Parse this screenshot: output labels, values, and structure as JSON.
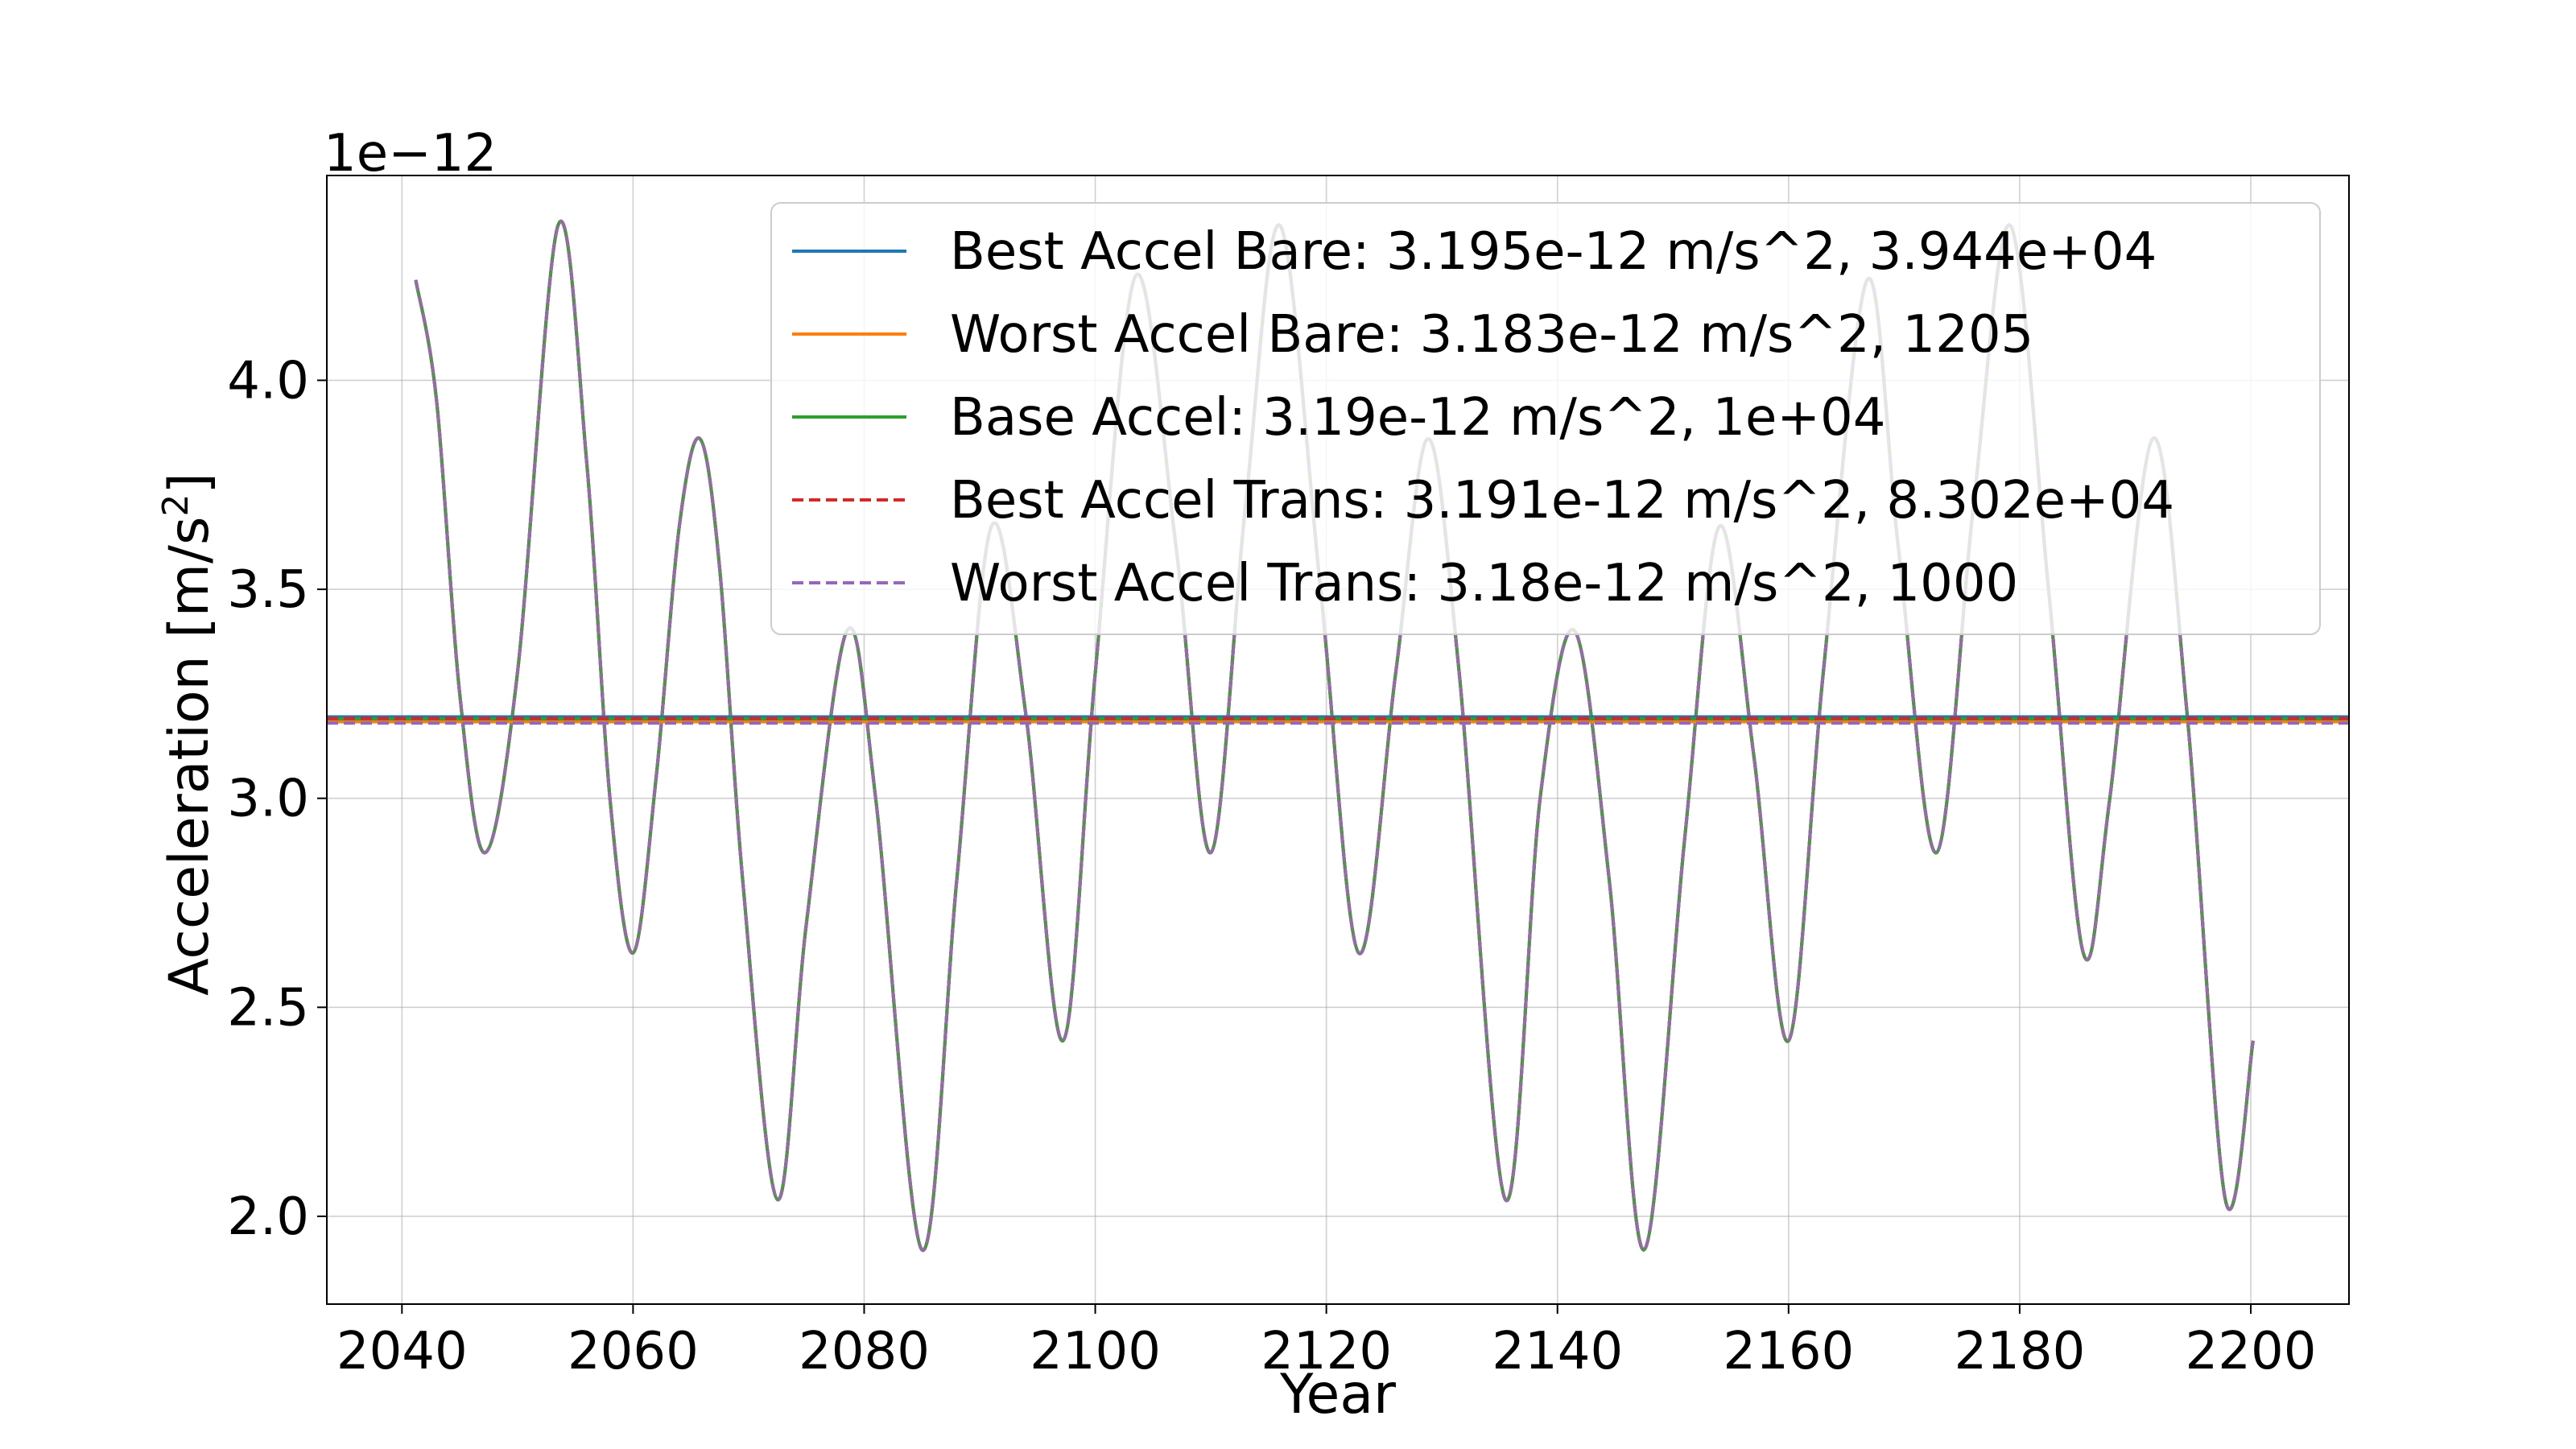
{
  "chart_data": {
    "type": "line",
    "title": "",
    "xlabel": "Year",
    "ylabel": "Acceleration [m/s²]",
    "ylabel_base": "Acceleration [m/s",
    "ylabel_sup": "2",
    "ylabel_close": "]",
    "y_offset_label": "1e−12",
    "xlim": [
      2033.5,
      2208.5
    ],
    "ylim": [
      1.79,
      4.49
    ],
    "x_ticks": [
      2040,
      2060,
      2080,
      2100,
      2120,
      2140,
      2160,
      2180,
      2200
    ],
    "x_tick_labels": [
      "2040",
      "2060",
      "2080",
      "2100",
      "2120",
      "2140",
      "2160",
      "2180",
      "2200"
    ],
    "y_ticks": [
      2.0,
      2.5,
      3.0,
      3.5,
      4.0
    ],
    "y_tick_labels": [
      "2.0",
      "2.5",
      "3.0",
      "3.5",
      "4.0"
    ],
    "grid": true,
    "legend_position": "top-right",
    "curve_x": [
      2041.2,
      2043.0,
      2045.0,
      2047.2,
      2050.0,
      2053.5,
      2056.0,
      2058.0,
      2060.0,
      2062.0,
      2064.0,
      2065.8,
      2067.5,
      2069.5,
      2072.5,
      2075.0,
      2078.5,
      2081.0,
      2085.0,
      2088.0,
      2091.0,
      2094.0,
      2097.2,
      2100.0,
      2103.5,
      2107.0,
      2110.0,
      2113.0,
      2116.0,
      2119.5,
      2122.8,
      2126.0,
      2128.8,
      2131.5,
      2135.5,
      2138.5,
      2141.5,
      2144.5,
      2147.5,
      2151.0,
      2154.0,
      2157.0,
      2160.0,
      2163.0,
      2166.8,
      2169.5,
      2172.8,
      2176.0,
      2179.2,
      2182.5,
      2185.5,
      2187.8,
      2191.5,
      2194.5,
      2197.8,
      2200.2
    ],
    "curve_y": [
      4.24,
      3.95,
      3.25,
      2.87,
      3.3,
      4.37,
      3.8,
      3.0,
      2.63,
      3.05,
      3.65,
      3.86,
      3.55,
      2.8,
      2.04,
      2.7,
      3.4,
      3.0,
      1.92,
      2.8,
      3.65,
      3.2,
      2.42,
      3.3,
      4.25,
      3.6,
      2.87,
      3.7,
      4.37,
      3.5,
      2.63,
      3.3,
      3.86,
      3.3,
      2.04,
      3.0,
      3.4,
      2.8,
      1.92,
      2.9,
      3.65,
      3.1,
      2.42,
      3.3,
      4.24,
      3.6,
      2.87,
      3.7,
      4.37,
      3.5,
      2.63,
      3.0,
      3.86,
      3.2,
      2.04,
      2.42
    ],
    "series": [
      {
        "name": "Best Accel Bare",
        "legend": "Best Accel Bare: 3.195e-12 m/s^2, 3.944e+04",
        "value": 3.195,
        "color": "#1f77b4",
        "style": "solid"
      },
      {
        "name": "Worst Accel Bare",
        "legend": "Worst Accel Bare: 3.183e-12 m/s^2, 1205",
        "value": 3.183,
        "color": "#ff7f0e",
        "style": "solid"
      },
      {
        "name": "Base Accel",
        "legend": "Base Accel: 3.19e-12 m/s^2, 1e+04",
        "value": 3.19,
        "color": "#2ca02c",
        "style": "solid"
      },
      {
        "name": "Best Accel Trans",
        "legend": "Best Accel Trans: 3.191e-12 m/s^2, 8.302e+04",
        "value": 3.191,
        "color": "#d62728",
        "style": "dashed"
      },
      {
        "name": "Worst Accel Trans",
        "legend": "Worst Accel Trans: 3.18e-12 m/s^2, 1000",
        "value": 3.18,
        "color": "#9467bd",
        "style": "dashed"
      }
    ]
  }
}
